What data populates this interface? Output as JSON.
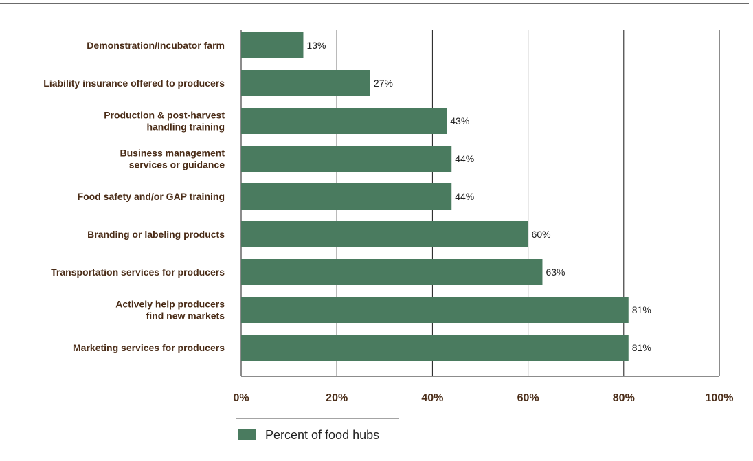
{
  "chart_data": {
    "type": "bar",
    "orientation": "horizontal",
    "categories": [
      [
        "Demonstration/Incubator farm"
      ],
      [
        "Liability insurance offered to producers"
      ],
      [
        "Production & post-harvest",
        "handling training"
      ],
      [
        "Business management",
        "services or guidance"
      ],
      [
        "Food safety and/or GAP training"
      ],
      [
        "Branding or labeling products"
      ],
      [
        "Transportation services for producers"
      ],
      [
        "Actively help producers",
        "find new markets"
      ],
      [
        "Marketing services for producers"
      ]
    ],
    "series": [
      {
        "name": "Percent of food hubs",
        "values": [
          13,
          27,
          43,
          44,
          44,
          60,
          63,
          81,
          81
        ],
        "labels": [
          "13%",
          "27%",
          "43%",
          "44%",
          "44%",
          "60%",
          "63%",
          "81%",
          "81%"
        ]
      }
    ],
    "x_ticks": [
      "0%",
      "20%",
      "40%",
      "60%",
      "80%",
      "100%"
    ],
    "xlim": [
      0,
      100
    ],
    "grid": "vertical",
    "legend_placement": "bottom",
    "bar_color": "#4a7b5f",
    "label_color": "#4a2c17"
  }
}
